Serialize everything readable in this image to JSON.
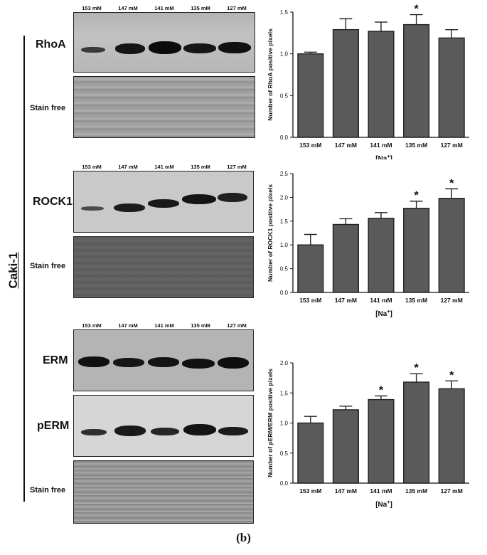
{
  "side_label": "Caki-1",
  "caption": "(b)",
  "lanes": [
    "153 mM",
    "147 mM",
    "141 mM",
    "135 mM",
    "127 mM"
  ],
  "blot_labels": {
    "rhoa": "RhoA",
    "stain1": "Stain free",
    "rock1": "ROCK1",
    "stain2": "Stain free",
    "erm": "ERM",
    "perm": "pERM",
    "stain3": "Stain free"
  },
  "colors": {
    "bar": "#5a5a5a",
    "axis": "#111111"
  },
  "chart_data": [
    {
      "type": "bar",
      "categories": [
        "153 mM",
        "147 mM",
        "141 mM",
        "135 mM",
        "127 mM"
      ],
      "values": [
        1.0,
        1.29,
        1.27,
        1.35,
        1.19
      ],
      "errors": [
        0.02,
        0.13,
        0.11,
        0.12,
        0.1
      ],
      "significance": [
        "",
        "",
        "",
        "*",
        ""
      ],
      "ylabel": "Number of RhoA positive pixels",
      "xlabel": "[Na+]",
      "ylim": [
        0,
        1.5
      ],
      "yticks": [
        "0.0",
        "0.5",
        "1.0",
        "1.5"
      ],
      "grid": false
    },
    {
      "type": "bar",
      "categories": [
        "153 mM",
        "147 mM",
        "141 mM",
        "135 mM",
        "127 mM"
      ],
      "values": [
        1.0,
        1.43,
        1.56,
        1.77,
        1.98
      ],
      "errors": [
        0.22,
        0.12,
        0.12,
        0.15,
        0.2
      ],
      "significance": [
        "",
        "",
        "",
        "*",
        "*"
      ],
      "ylabel": "Number of ROCK1 positive pixels",
      "xlabel": "[Na+]",
      "ylim": [
        0,
        2.5
      ],
      "yticks": [
        "0.0",
        "0.5",
        "1.0",
        "1.5",
        "2.0",
        "2.5"
      ],
      "grid": false
    },
    {
      "type": "bar",
      "categories": [
        "153 mM",
        "147 mM",
        "141 mM",
        "135 mM",
        "127 mM"
      ],
      "values": [
        1.0,
        1.22,
        1.39,
        1.68,
        1.57
      ],
      "errors": [
        0.11,
        0.06,
        0.06,
        0.14,
        0.13
      ],
      "significance": [
        "",
        "",
        "*",
        "*",
        "*"
      ],
      "ylabel": "Number of pERM/ERM positive pixels",
      "xlabel": "[Na+]",
      "ylim": [
        0,
        2.0
      ],
      "yticks": [
        "0.0",
        "0.5",
        "1.0",
        "1.5",
        "2.0"
      ],
      "grid": false
    }
  ]
}
